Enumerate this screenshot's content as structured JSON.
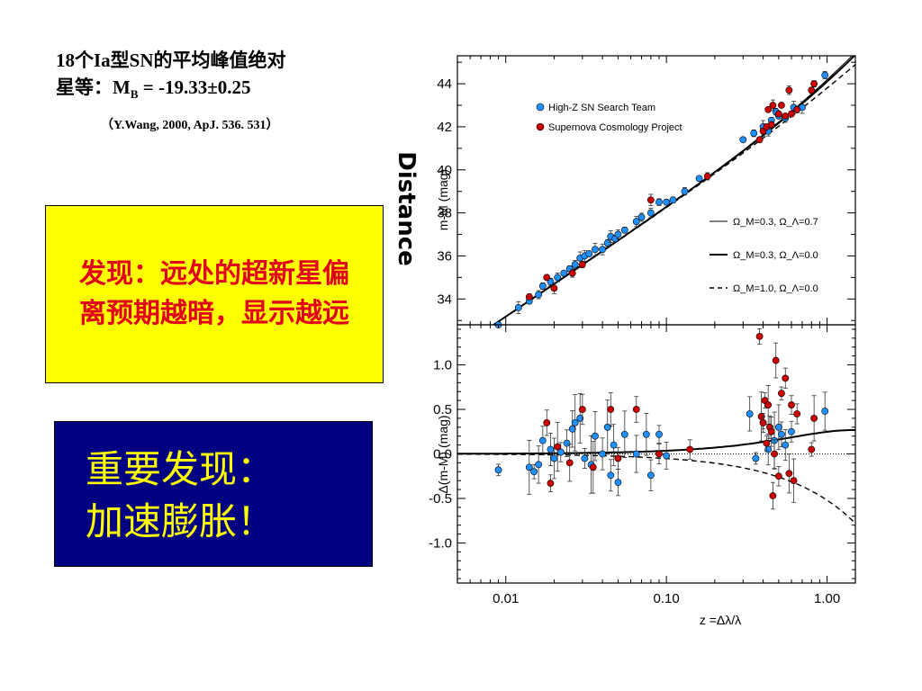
{
  "slide": {
    "title_line1": "18个Ia型SN的平均峰值绝对",
    "title_line2_prefix": "星等：M",
    "title_line2_sub": "B",
    "title_line2_rest": " = -19.33±0.25",
    "citation": "（Y.Wang,  2000, ApJ. 536. 531）",
    "yellow_box_text": "发现：远处的超新星偏离预期越暗，显示越远",
    "blue_box_line1": "重要发现：",
    "blue_box_line2": "加速膨胀！",
    "side_label": "Distance"
  },
  "colors": {
    "yellow_box_bg": "#ffff00",
    "yellow_box_text": "#e0001a",
    "blue_box_bg": "#000080",
    "blue_box_text": "#ffff00",
    "high_z_marker": "#1e90ff",
    "scp_marker": "#cc0000"
  },
  "chart_data": [
    {
      "type": "scatter",
      "panel": "top",
      "xscale": "log",
      "xlim": [
        0.005,
        1.5
      ],
      "ylim": [
        32.8,
        45.3
      ],
      "ylabel": "m-M (mag)",
      "yticks": [
        34,
        36,
        38,
        40,
        42,
        44
      ],
      "legend_position": "top-left",
      "series": [
        {
          "name": "High-Z SN Search Team",
          "marker": "circle",
          "color": "#1e90ff",
          "x": [
            0.009,
            0.012,
            0.014,
            0.016,
            0.017,
            0.019,
            0.021,
            0.023,
            0.025,
            0.027,
            0.029,
            0.031,
            0.033,
            0.036,
            0.04,
            0.043,
            0.045,
            0.048,
            0.05,
            0.055,
            0.065,
            0.07,
            0.08,
            0.09,
            0.1,
            0.11,
            0.13,
            0.16,
            0.3,
            0.35,
            0.4,
            0.43,
            0.45,
            0.48,
            0.5,
            0.55,
            0.62,
            0.7,
            0.97
          ],
          "y": [
            32.8,
            33.6,
            33.9,
            34.2,
            34.6,
            34.8,
            35.0,
            35.2,
            35.4,
            35.6,
            35.9,
            36.0,
            36.1,
            36.3,
            36.3,
            36.6,
            36.9,
            36.8,
            37.0,
            37.2,
            37.6,
            37.8,
            38.0,
            38.5,
            38.5,
            38.6,
            39.0,
            39.6,
            41.4,
            41.7,
            42.0,
            41.8,
            42.3,
            42.7,
            42.5,
            42.4,
            42.9,
            42.9,
            44.4
          ]
        },
        {
          "name": "Supernova Cosmology Project",
          "marker": "circle",
          "color": "#cc0000",
          "x": [
            0.014,
            0.018,
            0.02,
            0.026,
            0.03,
            0.08,
            0.18,
            0.38,
            0.4,
            0.42,
            0.43,
            0.45,
            0.46,
            0.5,
            0.52,
            0.55,
            0.58,
            0.6,
            0.65,
            0.8,
            0.83
          ],
          "y": [
            34.1,
            35.0,
            34.5,
            35.2,
            35.6,
            38.6,
            39.7,
            41.4,
            41.8,
            42.0,
            42.8,
            42.1,
            43.0,
            42.6,
            43.0,
            42.5,
            43.7,
            42.6,
            42.8,
            43.7,
            44.0
          ]
        }
      ],
      "model_curves": [
        {
          "name": "Ω_M=0.3, Ω_Λ=0.7",
          "style": "thin-solid"
        },
        {
          "name": "Ω_M=0.3, Ω_Λ=0.0",
          "style": "thick-solid"
        },
        {
          "name": "Ω_M=1.0, Ω_Λ=0.0",
          "style": "dashed"
        }
      ]
    },
    {
      "type": "scatter",
      "panel": "bottom",
      "xscale": "log",
      "xlim": [
        0.005,
        1.5
      ],
      "ylim": [
        -1.45,
        1.45
      ],
      "xlabel": "z =Δλ/λ",
      "ylabel": "Δ(m-M) (mag)",
      "xticks": [
        "0.01",
        "0.10",
        "1.00"
      ],
      "yticks": [
        "1.0",
        "0.5",
        "0.0",
        "-0.5",
        "-1.0"
      ],
      "series": [
        {
          "name": "High-Z SN Search Team",
          "marker": "circle",
          "color": "#1e90ff",
          "x": [
            0.009,
            0.014,
            0.015,
            0.016,
            0.017,
            0.019,
            0.02,
            0.022,
            0.024,
            0.026,
            0.027,
            0.029,
            0.031,
            0.034,
            0.036,
            0.04,
            0.043,
            0.045,
            0.047,
            0.05,
            0.055,
            0.065,
            0.075,
            0.08,
            0.09,
            0.1,
            0.33,
            0.36,
            0.4,
            0.43,
            0.47,
            0.5,
            0.52,
            0.55,
            0.6,
            0.97
          ],
          "y": [
            -0.18,
            -0.15,
            -0.2,
            -0.12,
            0.15,
            0.05,
            -0.05,
            0.02,
            0.12,
            0.28,
            0.35,
            0.4,
            -0.05,
            -0.12,
            0.2,
            0.0,
            0.3,
            -0.24,
            0.1,
            -0.32,
            0.22,
            0.0,
            0.22,
            -0.24,
            0.22,
            -0.02,
            0.45,
            -0.05,
            0.35,
            0.05,
            0.15,
            0.3,
            0.22,
            0.1,
            0.25,
            0.48
          ]
        },
        {
          "name": "Supernova Cosmology Project",
          "marker": "circle",
          "color": "#cc0000",
          "x": [
            0.018,
            0.019,
            0.021,
            0.025,
            0.03,
            0.035,
            0.045,
            0.05,
            0.065,
            0.09,
            0.14,
            0.38,
            0.39,
            0.4,
            0.41,
            0.42,
            0.43,
            0.44,
            0.45,
            0.46,
            0.47,
            0.48,
            0.5,
            0.52,
            0.55,
            0.58,
            0.6,
            0.62,
            0.65,
            0.8,
            0.83
          ],
          "y": [
            0.35,
            -0.33,
            0.08,
            -0.1,
            0.5,
            -0.15,
            0.5,
            -0.05,
            0.5,
            0.0,
            0.05,
            1.32,
            0.42,
            0.35,
            0.6,
            0.12,
            0.55,
            0.3,
            0.25,
            -0.47,
            0.0,
            1.05,
            -0.25,
            0.68,
            0.85,
            -0.22,
            0.55,
            -0.3,
            0.45,
            0.05,
            0.4
          ]
        }
      ]
    }
  ]
}
